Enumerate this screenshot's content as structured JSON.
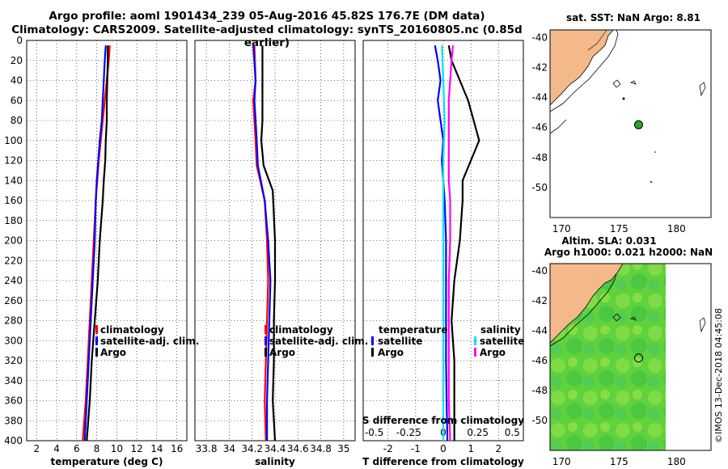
{
  "title_line1": "Argo profile: aoml 1901434_239 05-Aug-2016 45.82S 176.7E (DM data)",
  "title_line2": "Climatology: CARS2009. Satellite-adjusted climatology: synTS_20160805.nc (0.85d earlier)",
  "colors": {
    "climatology": "#ff0000",
    "satellite": "#0000ff",
    "argo": "#000000",
    "sal_satellite": "#00e5ee",
    "sal_argo": "#ff00ff",
    "land": "#f4b98a",
    "ocean_sla": "#5cd43a",
    "grid": "#000000"
  },
  "chart_data": [
    {
      "type": "line",
      "id": "temperature",
      "xlabel": "temperature (deg C)",
      "ylabel": "",
      "xlim": [
        1,
        17
      ],
      "ylim": [
        400,
        0
      ],
      "x_ticks": [
        "2",
        "4",
        "6",
        "8",
        "10",
        "12",
        "14",
        "16"
      ],
      "x_tick_values": [
        2,
        4,
        6,
        8,
        10,
        12,
        14,
        16
      ],
      "y_ticks": [
        "0",
        "20",
        "40",
        "60",
        "80",
        "100",
        "120",
        "140",
        "160",
        "180",
        "200",
        "220",
        "240",
        "260",
        "280",
        "300",
        "320",
        "340",
        "360",
        "380",
        "400"
      ],
      "legend": [
        "climatology",
        "satellite-adj. clim.",
        "Argo"
      ],
      "series": [
        {
          "name": "climatology",
          "color": "#ff0000",
          "depth": [
            5,
            20,
            40,
            60,
            80,
            100,
            120,
            140,
            160,
            200,
            240,
            280,
            320,
            360,
            400
          ],
          "values": [
            9.3,
            9.2,
            9.0,
            8.8,
            8.6,
            8.4,
            8.2,
            8.05,
            7.9,
            7.7,
            7.5,
            7.3,
            7.1,
            6.9,
            6.6
          ]
        },
        {
          "name": "satellite-adj. clim.",
          "color": "#0000ff",
          "depth": [
            5,
            20,
            40,
            60,
            80,
            100,
            120,
            140,
            160,
            200,
            240,
            280,
            320,
            360,
            400
          ],
          "values": [
            8.9,
            8.8,
            8.7,
            8.6,
            8.5,
            8.3,
            8.15,
            8.0,
            7.9,
            7.8,
            7.6,
            7.4,
            7.2,
            7.0,
            6.8
          ]
        },
        {
          "name": "Argo",
          "color": "#000000",
          "depth": [
            5,
            20,
            40,
            60,
            80,
            100,
            120,
            140,
            160,
            200,
            240,
            280,
            320,
            360,
            400
          ],
          "values": [
            9.1,
            9.1,
            9.05,
            9.0,
            9.0,
            8.9,
            8.85,
            8.7,
            8.6,
            8.3,
            8.1,
            7.8,
            7.5,
            7.3,
            7.0
          ]
        }
      ]
    },
    {
      "type": "line",
      "id": "salinity",
      "xlabel": "salinity",
      "xlim": [
        33.7,
        35.1
      ],
      "ylim": [
        400,
        0
      ],
      "x_ticks": [
        "33.8",
        "34",
        "34.2",
        "34.4",
        "34.6",
        "34.8",
        "35"
      ],
      "x_tick_values": [
        33.8,
        34.0,
        34.2,
        34.4,
        34.6,
        34.8,
        35.0
      ],
      "legend": [
        "climatology",
        "satellite-adj. clim.",
        "Argo"
      ],
      "series": [
        {
          "name": "climatology",
          "color": "#ff0000",
          "depth": [
            5,
            40,
            60,
            80,
            100,
            125,
            160,
            200,
            240,
            280,
            320,
            360,
            400
          ],
          "values": [
            34.22,
            34.23,
            34.21,
            34.22,
            34.23,
            34.24,
            34.31,
            34.33,
            34.34,
            34.33,
            34.32,
            34.31,
            34.32
          ]
        },
        {
          "name": "satellite-adj. clim.",
          "color": "#0000ff",
          "depth": [
            5,
            40,
            60,
            80,
            100,
            125,
            160,
            200,
            240,
            280,
            320,
            360,
            400
          ],
          "values": [
            34.21,
            34.23,
            34.22,
            34.23,
            34.24,
            34.25,
            34.31,
            34.34,
            34.36,
            34.35,
            34.34,
            34.33,
            34.33
          ]
        },
        {
          "name": "Argo",
          "color": "#000000",
          "depth": [
            5,
            40,
            60,
            80,
            100,
            125,
            150,
            200,
            240,
            280,
            320,
            360,
            400
          ],
          "values": [
            34.29,
            34.29,
            34.29,
            34.29,
            34.28,
            34.3,
            34.38,
            34.4,
            34.4,
            34.39,
            34.39,
            34.38,
            34.4
          ]
        }
      ]
    },
    {
      "type": "line",
      "id": "difference",
      "xlabel": "T difference from climatology",
      "x_ticks": [
        "-2",
        "-1",
        "0",
        "1",
        "2"
      ],
      "x_tick_values": [
        -2,
        -1,
        0,
        1,
        2
      ],
      "xlim": [
        -2.9,
        2.9
      ],
      "top_axis_label": "S difference from climatology",
      "top_ticks": [
        "-0.5",
        "-0.25",
        "0",
        "0.25",
        "0.5"
      ],
      "top_tick_values": [
        -0.5,
        -0.25,
        0,
        0.25,
        0.5
      ],
      "ylim": [
        400,
        0
      ],
      "legend_temperature": {
        "title": "temperature",
        "items": [
          "satellite",
          "Argo"
        ]
      },
      "legend_salinity": {
        "title": "salinity",
        "items": [
          "satellite",
          "Argo"
        ]
      },
      "series": [
        {
          "name": "temperature satellite",
          "color": "#0000ff",
          "depth": [
            5,
            20,
            40,
            60,
            80,
            100,
            120,
            140,
            160,
            200,
            240,
            280,
            320,
            360,
            400
          ],
          "values": [
            -0.3,
            -0.2,
            -0.1,
            -0.2,
            -0.1,
            0.0,
            -0.05,
            0.0,
            0.05,
            0.1,
            0.1,
            0.1,
            0.1,
            0.12,
            0.15
          ]
        },
        {
          "name": "temperature Argo",
          "color": "#000000",
          "depth": [
            5,
            20,
            40,
            60,
            80,
            100,
            120,
            140,
            160,
            200,
            240,
            280,
            320,
            360,
            400
          ],
          "values": [
            0.2,
            0.3,
            0.6,
            0.9,
            1.1,
            1.3,
            1.0,
            0.7,
            0.7,
            0.6,
            0.4,
            0.3,
            0.4,
            0.4,
            0.4
          ]
        },
        {
          "name": "salinity satellite",
          "color": "#00e5ee",
          "depth": [
            5,
            40,
            80,
            120,
            160,
            200,
            240,
            280,
            320,
            360,
            400
          ],
          "values": [
            -0.01,
            0.0,
            0.01,
            0.0,
            0.0,
            0.0,
            0.0,
            0.0,
            0.0,
            0.0,
            0.0
          ]
        },
        {
          "name": "salinity Argo",
          "color": "#ff00ff",
          "depth": [
            5,
            20,
            40,
            60,
            80,
            100,
            120,
            140,
            160,
            200,
            240,
            280,
            320,
            360,
            400
          ],
          "values": [
            0.07,
            0.06,
            0.05,
            0.04,
            0.04,
            0.04,
            0.04,
            0.04,
            0.05,
            0.05,
            0.04,
            0.04,
            0.04,
            0.04,
            0.05
          ]
        }
      ]
    },
    {
      "type": "scatter",
      "id": "sst_map",
      "title": "sat. SST: NaN Argo: 8.81",
      "xlim": [
        169,
        183
      ],
      "ylim": [
        -52,
        -39.5
      ],
      "x_ticks": [
        "170",
        "175",
        "180"
      ],
      "x_tick_values": [
        170,
        175,
        180
      ],
      "y_ticks": [
        "-40",
        "-42",
        "-44",
        "-46",
        "-48",
        "-50"
      ],
      "y_tick_values": [
        -40,
        -42,
        -44,
        -46,
        -48,
        -50
      ],
      "argo_point": {
        "lon": 176.7,
        "lat": -45.82
      }
    },
    {
      "type": "heatmap",
      "id": "sla_map",
      "title_line1": "Altim. SLA: 0.031",
      "title_line2": "Argo h1000: 0.021 h2000: NaN",
      "xlim": [
        169,
        183
      ],
      "ylim": [
        -52,
        -39.5
      ],
      "x_ticks": [
        "170",
        "175",
        "180"
      ],
      "x_tick_values": [
        170,
        175,
        180
      ],
      "y_ticks": [
        "-40",
        "-42",
        "-44",
        "-46",
        "-48",
        "-50"
      ],
      "y_tick_values": [
        -40,
        -42,
        -44,
        -46,
        -48,
        -50
      ],
      "argo_point": {
        "lon": 176.7,
        "lat": -45.82
      }
    }
  ],
  "credit": "©IMOS 13-Dec-2018 04:45:08"
}
